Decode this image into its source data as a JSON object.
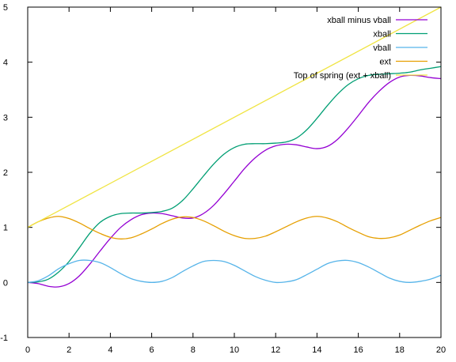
{
  "chart_data": {
    "type": "line",
    "title": "",
    "xlabel": "",
    "ylabel": "",
    "xlim": [
      0,
      20
    ],
    "ylim": [
      -1,
      5
    ],
    "xticks": [
      "0",
      "2",
      "4",
      "6",
      "8",
      "10",
      "12",
      "14",
      "16",
      "18",
      "20"
    ],
    "yticks": [
      "-1",
      "0",
      "1",
      "2",
      "3",
      "4",
      "5"
    ],
    "grid": false,
    "legend_position": "top-right",
    "series": [
      {
        "name": "xball minus vball",
        "color": "#9400d3",
        "x": [
          0,
          0.5,
          1,
          1.5,
          2,
          2.5,
          3,
          3.5,
          4,
          4.5,
          5,
          5.5,
          6,
          6.5,
          7,
          7.5,
          8,
          8.5,
          9,
          9.5,
          10,
          10.5,
          11,
          11.5,
          12,
          12.5,
          13,
          13.5,
          14,
          14.5,
          15,
          15.5,
          16,
          16.5,
          17,
          17.5,
          18,
          18.5,
          19,
          19.5,
          20
        ],
        "y": [
          0.0,
          -0.02,
          -0.07,
          -0.08,
          -0.02,
          0.12,
          0.33,
          0.57,
          0.8,
          1.0,
          1.14,
          1.23,
          1.26,
          1.25,
          1.21,
          1.17,
          1.17,
          1.25,
          1.4,
          1.61,
          1.84,
          2.07,
          2.26,
          2.4,
          2.48,
          2.51,
          2.5,
          2.46,
          2.43,
          2.47,
          2.6,
          2.8,
          3.03,
          3.27,
          3.47,
          3.63,
          3.73,
          3.76,
          3.75,
          3.72,
          3.7
        ]
      },
      {
        "name": "xball",
        "color": "#009e73",
        "x": [
          0,
          0.5,
          1,
          1.5,
          2,
          2.5,
          3,
          3.5,
          4,
          4.5,
          5,
          5.5,
          6,
          6.5,
          7,
          7.5,
          8,
          8.5,
          9,
          9.5,
          10,
          10.5,
          11,
          11.5,
          12,
          12.5,
          13,
          13.5,
          14,
          14.5,
          15,
          15.5,
          16,
          16.5,
          17,
          17.5,
          18,
          18.5,
          19,
          19.5,
          20
        ],
        "y": [
          0.0,
          0.01,
          0.06,
          0.19,
          0.38,
          0.63,
          0.89,
          1.09,
          1.2,
          1.25,
          1.26,
          1.26,
          1.27,
          1.29,
          1.35,
          1.49,
          1.7,
          1.93,
          2.15,
          2.33,
          2.45,
          2.51,
          2.52,
          2.52,
          2.53,
          2.55,
          2.62,
          2.77,
          2.98,
          3.21,
          3.42,
          3.59,
          3.7,
          3.76,
          3.78,
          3.79,
          3.8,
          3.82,
          3.86,
          3.89,
          3.92
        ]
      },
      {
        "name": "vball",
        "color": "#56b4e9",
        "x": [
          0,
          0.5,
          1,
          1.5,
          2,
          2.5,
          3,
          3.5,
          4,
          4.5,
          5,
          5.5,
          6,
          6.5,
          7,
          7.5,
          8,
          8.5,
          9,
          9.5,
          10,
          10.5,
          11,
          11.5,
          12,
          12.5,
          13,
          13.5,
          14,
          14.5,
          15,
          15.5,
          16,
          16.5,
          17,
          17.5,
          18,
          18.5,
          19,
          19.5,
          20
        ],
        "y": [
          0.0,
          0.03,
          0.12,
          0.25,
          0.34,
          0.4,
          0.4,
          0.36,
          0.27,
          0.16,
          0.07,
          0.02,
          0.0,
          0.02,
          0.09,
          0.2,
          0.3,
          0.38,
          0.4,
          0.38,
          0.31,
          0.21,
          0.11,
          0.04,
          0.0,
          0.01,
          0.05,
          0.14,
          0.24,
          0.34,
          0.39,
          0.4,
          0.36,
          0.28,
          0.18,
          0.08,
          0.02,
          0.0,
          0.02,
          0.06,
          0.13
        ]
      },
      {
        "name": "ext",
        "color": "#e69f00",
        "x": [
          0,
          0.5,
          1,
          1.5,
          2,
          2.5,
          3,
          3.5,
          4,
          4.5,
          5,
          5.5,
          6,
          6.5,
          7,
          7.5,
          8,
          8.5,
          9,
          9.5,
          10,
          10.5,
          11,
          11.5,
          12,
          12.5,
          13,
          13.5,
          14,
          14.5,
          15,
          15.5,
          16,
          16.5,
          17,
          17.5,
          18,
          18.5,
          19,
          19.5,
          20
        ],
        "y": [
          1.0,
          1.1,
          1.17,
          1.2,
          1.16,
          1.08,
          0.98,
          0.89,
          0.82,
          0.79,
          0.81,
          0.88,
          0.97,
          1.07,
          1.15,
          1.19,
          1.18,
          1.12,
          1.03,
          0.93,
          0.85,
          0.8,
          0.8,
          0.84,
          0.92,
          1.01,
          1.1,
          1.17,
          1.2,
          1.17,
          1.1,
          1.0,
          0.91,
          0.83,
          0.8,
          0.81,
          0.86,
          0.95,
          1.04,
          1.12,
          1.18
        ]
      },
      {
        "name": "Top of spring (ext + xball)",
        "color": "#f0e442",
        "x": [
          0,
          20
        ],
        "y": [
          1.0,
          5.0
        ]
      }
    ]
  }
}
